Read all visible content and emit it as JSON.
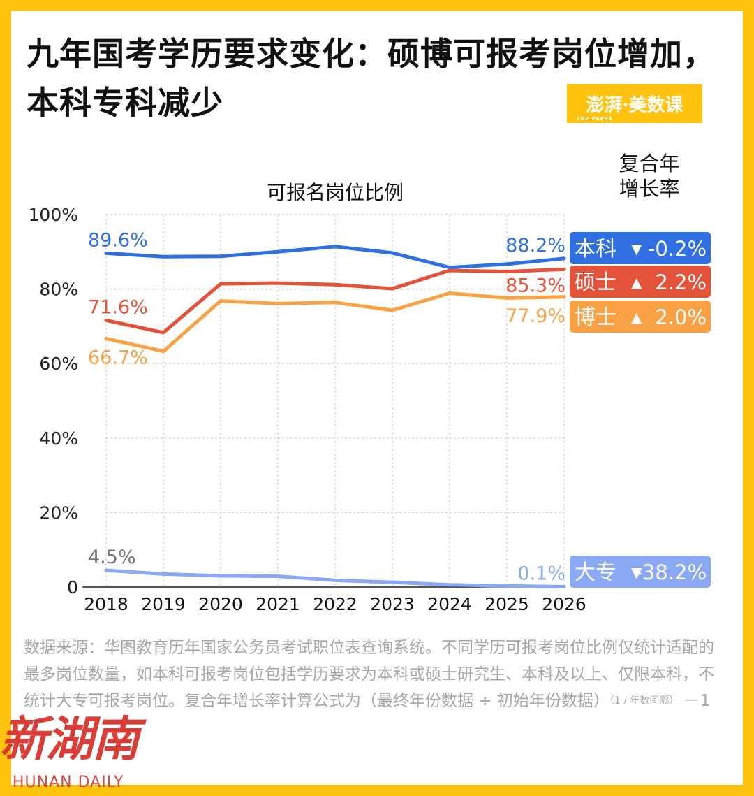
{
  "title": "九年国考学历要求变化：硕博可报考岗位增加，本科专科减少",
  "brand": {
    "main": "澎湃·美数课",
    "sub": "THE PAPER"
  },
  "cagr_header": [
    "复合年",
    "增长率"
  ],
  "chart_data": {
    "type": "line",
    "title": "可报名岗位比例",
    "xlabel": "",
    "ylabel": "",
    "ylim": [
      0,
      100
    ],
    "yticks": [
      "0",
      "20%",
      "40%",
      "60%",
      "80%",
      "100%"
    ],
    "ytick_values": [
      0,
      20,
      40,
      60,
      80,
      100
    ],
    "categories": [
      "2018",
      "2019",
      "2020",
      "2021",
      "2022",
      "2023",
      "2024",
      "2025",
      "2026"
    ],
    "series": [
      {
        "name": "本科",
        "color": "#2F6FE0",
        "values": [
          89.6,
          88.7,
          88.8,
          90.0,
          91.4,
          89.7,
          85.8,
          86.7,
          88.2
        ],
        "start_label": "89.6%",
        "end_label": "88.2%",
        "cagr_arrow": "▼",
        "cagr": "-0.2%"
      },
      {
        "name": "硕士",
        "color": "#E2533A",
        "values": [
          71.6,
          68.3,
          81.4,
          81.6,
          81.2,
          80.1,
          85.0,
          84.7,
          85.3
        ],
        "start_label": "71.6%",
        "end_label": "85.3%",
        "cagr_arrow": "▲",
        "cagr": "2.2%"
      },
      {
        "name": "博士",
        "color": "#F9A245",
        "values": [
          66.7,
          63.3,
          76.8,
          76.1,
          76.4,
          74.3,
          78.9,
          77.6,
          77.9
        ],
        "start_label": "66.7%",
        "end_label": "77.9%",
        "cagr_arrow": "▲",
        "cagr": "2.0%"
      },
      {
        "name": "大专",
        "color": "#8AA9F2",
        "values": [
          4.5,
          3.5,
          3.0,
          2.9,
          1.8,
          1.3,
          0.6,
          0.3,
          0.1
        ],
        "start_label": "4.5%",
        "end_label": "0.1%",
        "start_label_color": "#777777",
        "cagr_arrow": "▼",
        "cagr": "-38.2%"
      }
    ]
  },
  "footnote": {
    "text": "数据来源：华图教育历年国家公务员考试职位表查询系统。不同学历可报考岗位比例仅统计适配的最多岗位数量，如本科可报考岗位包括学历要求为本科或硕士研究生、本科及以上、仅限本科，不统计大专可报考岗位。复合年增长率计算公式为（最终年份数据 ÷ 初始年份数据）",
    "exponent": "（1 / 年数间隔）",
    "tail": "－1"
  },
  "watermark": {
    "cn": "新湖南",
    "en": "HUNAN DAILY"
  }
}
